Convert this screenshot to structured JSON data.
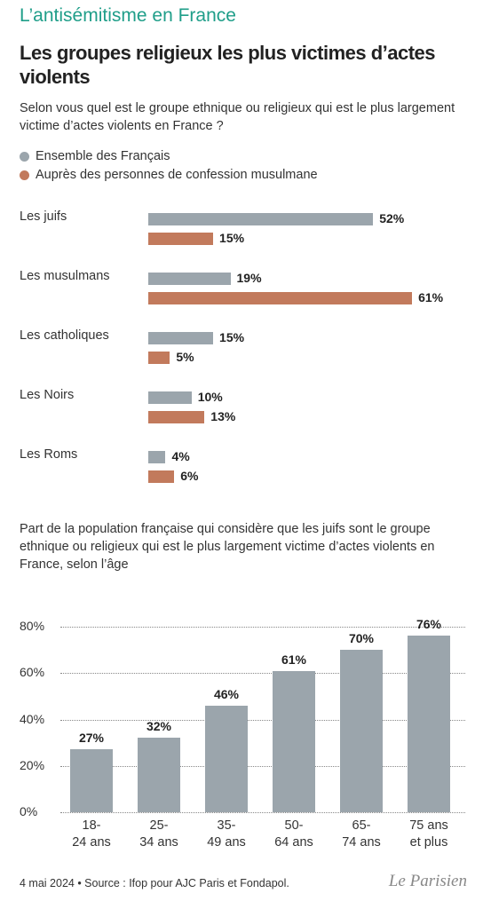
{
  "header": {
    "kicker": "L’antisémitisme en France",
    "title": "Les groupes religieux les plus victimes d’actes violents"
  },
  "chart_data": [
    {
      "type": "hbar",
      "title": "Selon vous quel est le groupe ethnique ou religieux qui est le plus largement victime d’actes violents en France ?",
      "categories": [
        "Les juifs",
        "Les musulmans",
        "Les catholiques",
        "Les Noirs",
        "Les Roms"
      ],
      "series": [
        {
          "name": "Ensemble des Français",
          "color": "#9ba5ac",
          "values": [
            52,
            19,
            15,
            10,
            4
          ],
          "value_labels": [
            "52%",
            "19%",
            "15%",
            "10%",
            "4%"
          ]
        },
        {
          "name": "Auprès des personnes de confession musulmane",
          "color": "#c27a5c",
          "values": [
            15,
            61,
            5,
            13,
            6
          ],
          "value_labels": [
            "15%",
            "61%",
            "5%",
            "13%",
            "6%"
          ]
        }
      ],
      "legend": "top-left"
    },
    {
      "type": "bar",
      "title": "Part de la population française qui considère que les juifs sont le groupe ethnique ou religieux qui est le plus largement victime d’actes violents en France, selon l’âge",
      "categories": [
        "18-\n24 ans",
        "25-\n34 ans",
        "35-\n49 ans",
        "50-\n64 ans",
        "65-\n74 ans",
        "75 ans\net plus"
      ],
      "values": [
        27,
        32,
        46,
        61,
        70,
        76
      ],
      "value_labels": [
        "27%",
        "32%",
        "46%",
        "61%",
        "70%",
        "76%"
      ],
      "color": "#9ba5ac",
      "ylim": [
        0,
        80
      ],
      "yticks": [
        {
          "value": 0,
          "label": "0%"
        },
        {
          "value": 20,
          "label": "20%"
        },
        {
          "value": 40,
          "label": "40%"
        },
        {
          "value": 60,
          "label": "60%"
        },
        {
          "value": 80,
          "label": "80%"
        }
      ],
      "grid": true
    }
  ],
  "footer": {
    "source": "4 mai 2024 • Source : Ifop pour AJC Paris et Fondapol.",
    "logo": "Le Parisien"
  }
}
